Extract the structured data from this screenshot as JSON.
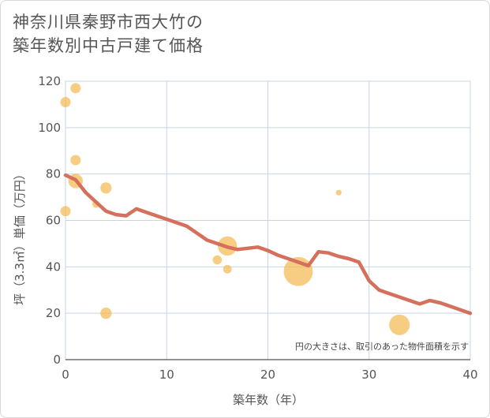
{
  "title_line1": "神奈川県秦野市西大竹の",
  "title_line2": "築年数別中古戸建て価格",
  "chart_data": {
    "type": "scatter",
    "title": "神奈川県秦野市西大竹の築年数別中古戸建て価格",
    "xlabel": "築年数（年）",
    "ylabel": "坪（3.3㎡）単価（万円）",
    "xlim": [
      0,
      40
    ],
    "ylim": [
      0,
      120
    ],
    "xticks": [
      0,
      10,
      20,
      30,
      40
    ],
    "yticks": [
      0,
      20,
      40,
      60,
      80,
      100,
      120
    ],
    "grid": true,
    "note": "円の大きさは、取引のあった物件面積を示す",
    "colors": {
      "bubble": "#f3b64f",
      "line": "#d4705b",
      "grid": "#c8d4e4"
    },
    "bubbles": [
      {
        "x": 0,
        "y": 111,
        "size": 1
      },
      {
        "x": 1,
        "y": 117,
        "size": 1
      },
      {
        "x": 1,
        "y": 86,
        "size": 1
      },
      {
        "x": 1,
        "y": 77,
        "size": 2
      },
      {
        "x": 0,
        "y": 64,
        "size": 1
      },
      {
        "x": 3,
        "y": 67,
        "size": 0.5
      },
      {
        "x": 4,
        "y": 74,
        "size": 1.2
      },
      {
        "x": 4,
        "y": 20,
        "size": 1.2
      },
      {
        "x": 15,
        "y": 43,
        "size": 0.8
      },
      {
        "x": 16,
        "y": 49,
        "size": 3.5
      },
      {
        "x": 16,
        "y": 39,
        "size": 0.7
      },
      {
        "x": 23,
        "y": 38,
        "size": 8
      },
      {
        "x": 27,
        "y": 72,
        "size": 0.3
      },
      {
        "x": 33,
        "y": 15,
        "size": 4
      }
    ],
    "trend": {
      "x": [
        0,
        1,
        2,
        3,
        4,
        5,
        6,
        7,
        8,
        9,
        10,
        11,
        12,
        13,
        14,
        15,
        16,
        17,
        18,
        19,
        20,
        21,
        22,
        23,
        24,
        25,
        26,
        27,
        28,
        29,
        30,
        31,
        32,
        33,
        34,
        35,
        36,
        37,
        38,
        39,
        40
      ],
      "y": [
        79.5,
        77.5,
        72,
        68,
        64,
        62.5,
        62,
        65,
        63.5,
        62,
        60.5,
        59,
        57.5,
        54.5,
        51.5,
        50,
        48.5,
        47.5,
        48,
        48.5,
        47,
        45,
        43.5,
        42,
        40.5,
        46.5,
        46,
        44.5,
        43.5,
        42,
        34,
        30,
        28.5,
        27,
        25.5,
        24,
        25.5,
        24.5,
        23,
        21.5,
        20
      ]
    }
  }
}
